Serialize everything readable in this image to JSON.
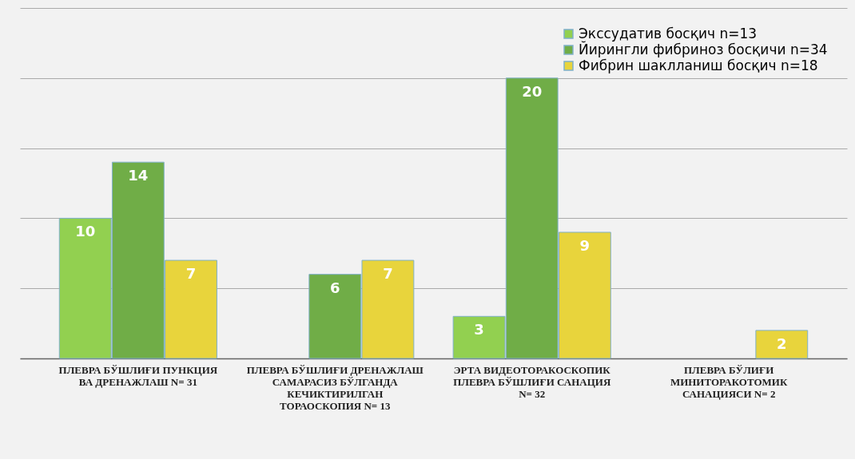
{
  "chart_data": {
    "type": "bar",
    "categories": [
      "ПЛЕВРА БЎШЛИҒИ ПУНКЦИЯ ВА ДРЕНАЖЛАШ N= 31",
      "ПЛЕВРА БЎШЛИҒИ ДРЕНАЖЛАШ САМАРАСИЗ БЎЛГАНДА КЕЧИКТИРИЛГАН ТОРАОСКОПИЯ  N= 13",
      "ЭРТА ВИДЕОТОРАКОСКОПИК ПЛЕВРА БЎШЛИҒИ САНАЦИЯ N= 32",
      "ПЛЕВРА БЎЛИҒИ МИНИТОРАКОТОМИК САНАЦИЯСИ N= 2"
    ],
    "series": [
      {
        "name": "Экссудатив босқич n=13",
        "color": "#92d050",
        "values": [
          10,
          null,
          3,
          null
        ]
      },
      {
        "name": "Йирингли фибриноз босқичи n=34",
        "color": "#70ad47",
        "values": [
          14,
          6,
          20,
          null
        ]
      },
      {
        "name": "Фибрин шаклланиш босқич n=18",
        "color": "#e8d43c",
        "values": [
          7,
          7,
          9,
          2
        ]
      }
    ],
    "ylim": [
      0,
      25
    ],
    "yticks": [
      {
        "value": 0,
        "label": null
      },
      {
        "value": 5,
        "label": null
      },
      {
        "value": 10,
        "label": null
      },
      {
        "value": 15,
        "label": null
      },
      {
        "value": 20,
        "label": null
      },
      {
        "value": 25,
        "label": null
      }
    ],
    "tick_labels": "x",
    "grid": "y",
    "legend": "top right",
    "data_labels": true
  }
}
